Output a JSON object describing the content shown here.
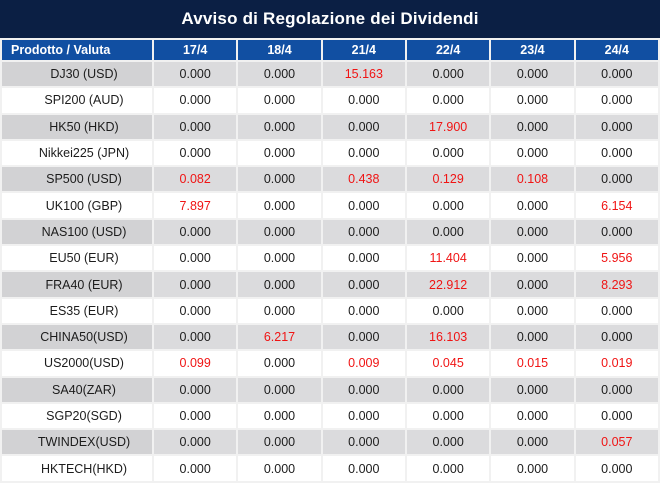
{
  "title": "Avviso di Regolazione dei Dividendi",
  "table": {
    "product_header": "Prodotto / Valuta",
    "date_columns": [
      "17/4",
      "18/4",
      "21/4",
      "22/4",
      "23/4",
      "24/4"
    ],
    "rows": [
      {
        "product": "DJ30 (USD)",
        "values": [
          "0.000",
          "0.000",
          "15.163",
          "0.000",
          "0.000",
          "0.000"
        ]
      },
      {
        "product": "SPI200 (AUD)",
        "values": [
          "0.000",
          "0.000",
          "0.000",
          "0.000",
          "0.000",
          "0.000"
        ]
      },
      {
        "product": "HK50 (HKD)",
        "values": [
          "0.000",
          "0.000",
          "0.000",
          "17.900",
          "0.000",
          "0.000"
        ]
      },
      {
        "product": "Nikkei225 (JPN)",
        "values": [
          "0.000",
          "0.000",
          "0.000",
          "0.000",
          "0.000",
          "0.000"
        ]
      },
      {
        "product": "SP500 (USD)",
        "values": [
          "0.082",
          "0.000",
          "0.438",
          "0.129",
          "0.108",
          "0.000"
        ]
      },
      {
        "product": "UK100 (GBP)",
        "values": [
          "7.897",
          "0.000",
          "0.000",
          "0.000",
          "0.000",
          "6.154"
        ]
      },
      {
        "product": "NAS100 (USD)",
        "values": [
          "0.000",
          "0.000",
          "0.000",
          "0.000",
          "0.000",
          "0.000"
        ]
      },
      {
        "product": "EU50 (EUR)",
        "values": [
          "0.000",
          "0.000",
          "0.000",
          "11.404",
          "0.000",
          "5.956"
        ]
      },
      {
        "product": "FRA40 (EUR)",
        "values": [
          "0.000",
          "0.000",
          "0.000",
          "22.912",
          "0.000",
          "8.293"
        ]
      },
      {
        "product": "ES35 (EUR)",
        "values": [
          "0.000",
          "0.000",
          "0.000",
          "0.000",
          "0.000",
          "0.000"
        ]
      },
      {
        "product": "CHINA50(USD)",
        "values": [
          "0.000",
          "6.217",
          "0.000",
          "16.103",
          "0.000",
          "0.000"
        ]
      },
      {
        "product": "US2000(USD)",
        "values": [
          "0.099",
          "0.000",
          "0.009",
          "0.045",
          "0.015",
          "0.019"
        ]
      },
      {
        "product": "SA40(ZAR)",
        "values": [
          "0.000",
          "0.000",
          "0.000",
          "0.000",
          "0.000",
          "0.000"
        ]
      },
      {
        "product": "SGP20(SGD)",
        "values": [
          "0.000",
          "0.000",
          "0.000",
          "0.000",
          "0.000",
          "0.000"
        ]
      },
      {
        "product": "TWINDEX(USD)",
        "values": [
          "0.000",
          "0.000",
          "0.000",
          "0.000",
          "0.000",
          "0.057"
        ]
      },
      {
        "product": "HKTECH(HKD)",
        "values": [
          "0.000",
          "0.000",
          "0.000",
          "0.000",
          "0.000",
          "0.000"
        ]
      }
    ]
  },
  "colors": {
    "title_bg": "#0b1f44",
    "header_bg": "#114fa2",
    "alt_row_product_bg": "#d2d2d4",
    "alt_row_value_bg": "#dbdbdd",
    "highlight_red": "#f01414",
    "text_dark": "#1c1c1c"
  }
}
